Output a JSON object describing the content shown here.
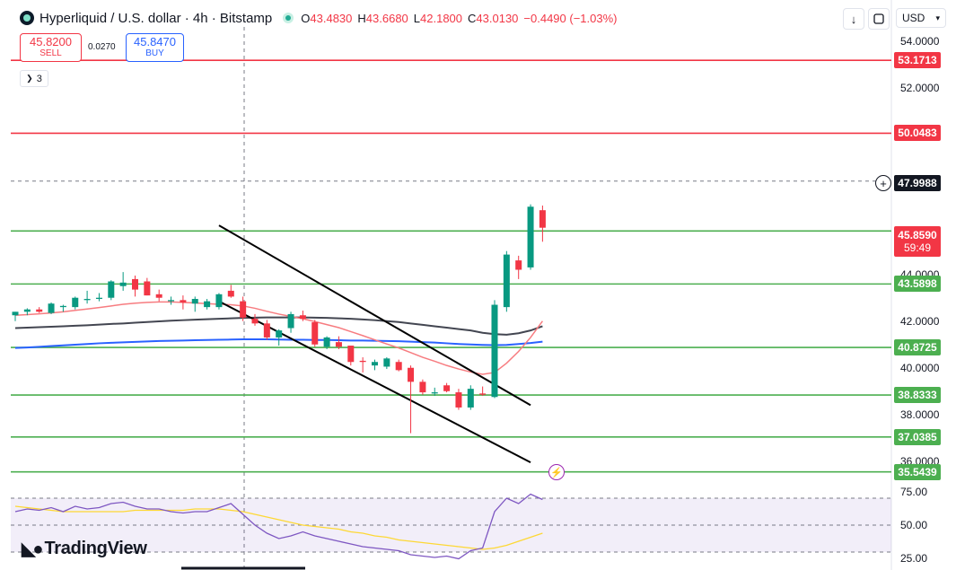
{
  "header": {
    "title": "Hyperliquid / U.S. dollar · 4h · Bitstamp",
    "ohlc": [
      {
        "key": "O",
        "value": "43.4830"
      },
      {
        "key": "H",
        "value": "43.6680"
      },
      {
        "key": "L",
        "value": "42.1800"
      },
      {
        "key": "C",
        "value": "43.0130"
      }
    ],
    "change": "−0.4490 (−1.03%)"
  },
  "toolbar": {
    "download_icon": "arrow-down-icon",
    "screenshot_icon": "frame-icon",
    "currency": "USD"
  },
  "trade": {
    "sell_price": "45.8200",
    "sell_label": "SELL",
    "spread": "0.0270",
    "buy_price": "45.8470",
    "buy_label": "BUY"
  },
  "collapse_label": "3",
  "brand": "TradingView",
  "colors": {
    "up": "#089981",
    "down": "#f23645",
    "support": "#4caf50",
    "resistance": "#f23645",
    "ma_fast": "#f77c80",
    "ma_mid": "#434651",
    "ma_slow": "#2962ff",
    "rsi": "#7e57c2",
    "rsi_ma": "#fdd835"
  },
  "price_labels": {
    "current": "45.8590",
    "countdown": "59:49",
    "crosshair": "47.9988"
  },
  "chart_data": {
    "type": "candlestick",
    "ylim": [
      34.8,
      54.6
    ],
    "yticks": [
      "54.0000",
      "52.0000",
      "44.0000",
      "42.0000",
      "40.0000",
      "38.0000",
      "36.0000"
    ],
    "ytick_values": [
      54,
      52,
      44,
      42,
      40,
      38,
      36
    ],
    "resistance_levels": [
      {
        "value": 53.1713,
        "label": "53.1713"
      },
      {
        "value": 50.0483,
        "label": "50.0483"
      }
    ],
    "support_levels": [
      {
        "value": 45.859,
        "label": ""
      },
      {
        "value": 43.5898,
        "label": "43.5898"
      },
      {
        "value": 40.8725,
        "label": "40.8725"
      },
      {
        "value": 38.8333,
        "label": "38.8333"
      },
      {
        "value": 37.0385,
        "label": "37.0385"
      },
      {
        "value": 35.5439,
        "label": "35.5439"
      }
    ],
    "crosshair_value": 47.9988,
    "candles": [
      [
        42.25,
        42.4,
        42.0,
        42.4
      ],
      [
        42.4,
        42.55,
        42.25,
        42.5
      ],
      [
        42.5,
        42.6,
        42.35,
        42.4
      ],
      [
        42.35,
        42.8,
        42.3,
        42.75
      ],
      [
        42.6,
        42.7,
        42.4,
        42.65
      ],
      [
        42.6,
        43.05,
        42.5,
        43.0
      ],
      [
        42.9,
        43.3,
        42.75,
        42.95
      ],
      [
        42.95,
        43.2,
        42.85,
        43.0
      ],
      [
        43.0,
        43.75,
        42.9,
        43.7
      ],
      [
        43.5,
        44.1,
        43.3,
        43.65
      ],
      [
        43.8,
        43.95,
        43.05,
        43.35
      ],
      [
        43.7,
        43.85,
        43.1,
        43.1
      ],
      [
        43.15,
        43.35,
        42.85,
        43.0
      ],
      [
        42.85,
        43.05,
        42.7,
        42.9
      ],
      [
        42.9,
        43.1,
        42.5,
        42.8
      ],
      [
        42.75,
        43.05,
        42.4,
        42.95
      ],
      [
        42.6,
        42.95,
        42.5,
        42.85
      ],
      [
        42.6,
        43.2,
        42.5,
        43.15
      ],
      [
        43.3,
        43.55,
        43.0,
        43.05
      ],
      [
        42.85,
        43.05,
        42.0,
        42.15
      ],
      [
        42.1,
        42.3,
        41.8,
        41.9
      ],
      [
        41.9,
        42.05,
        41.2,
        41.3
      ],
      [
        41.3,
        41.65,
        40.95,
        41.6
      ],
      [
        41.7,
        42.4,
        41.5,
        42.3
      ],
      [
        42.25,
        42.45,
        42.0,
        42.1
      ],
      [
        41.95,
        42.05,
        40.9,
        41.0
      ],
      [
        40.9,
        41.35,
        40.8,
        41.3
      ],
      [
        41.1,
        41.35,
        40.8,
        40.9
      ],
      [
        40.95,
        40.95,
        40.1,
        40.25
      ],
      [
        40.3,
        40.45,
        39.8,
        40.25
      ],
      [
        40.1,
        40.35,
        39.9,
        40.25
      ],
      [
        40.05,
        40.45,
        39.95,
        40.4
      ],
      [
        40.25,
        40.35,
        39.85,
        39.9
      ],
      [
        40.0,
        40.1,
        37.2,
        39.4
      ],
      [
        39.4,
        39.5,
        38.85,
        38.95
      ],
      [
        38.9,
        39.15,
        38.8,
        38.95
      ],
      [
        39.25,
        39.35,
        38.95,
        39.0
      ],
      [
        38.95,
        39.1,
        38.2,
        38.3
      ],
      [
        38.3,
        39.25,
        38.2,
        39.1
      ],
      [
        38.9,
        39.2,
        38.8,
        38.85
      ],
      [
        38.75,
        42.9,
        38.7,
        42.7
      ],
      [
        42.6,
        45.0,
        42.4,
        44.85
      ],
      [
        44.6,
        44.8,
        43.8,
        44.2
      ],
      [
        44.3,
        47.0,
        44.2,
        46.9
      ],
      [
        46.75,
        46.95,
        45.4,
        46.0
      ]
    ],
    "ma_fast": [
      42.25,
      42.28,
      42.31,
      42.35,
      42.4,
      42.46,
      42.52,
      42.58,
      42.65,
      42.72,
      42.77,
      42.8,
      42.82,
      42.82,
      42.8,
      42.78,
      42.75,
      42.72,
      42.7,
      42.65,
      42.55,
      42.42,
      42.3,
      42.2,
      42.1,
      41.98,
      41.85,
      41.72,
      41.55,
      41.38,
      41.2,
      41.02,
      40.85,
      40.65,
      40.45,
      40.28,
      40.1,
      39.95,
      39.82,
      39.72,
      39.8,
      40.2,
      40.7,
      41.3,
      42.0
    ],
    "ma_mid": [
      41.7,
      41.72,
      41.74,
      41.76,
      41.78,
      41.8,
      41.82,
      41.85,
      41.88,
      41.9,
      41.93,
      41.96,
      41.99,
      42.02,
      42.04,
      42.06,
      42.08,
      42.1,
      42.12,
      42.14,
      42.15,
      42.16,
      42.16,
      42.16,
      42.16,
      42.15,
      42.14,
      42.12,
      42.1,
      42.07,
      42.04,
      42.0,
      41.96,
      41.9,
      41.84,
      41.78,
      41.72,
      41.66,
      41.6,
      41.5,
      41.44,
      41.42,
      41.48,
      41.6,
      41.78
    ],
    "ma_slow": [
      40.85,
      40.87,
      40.9,
      40.93,
      40.96,
      40.99,
      41.02,
      41.05,
      41.07,
      41.09,
      41.11,
      41.13,
      41.15,
      41.16,
      41.17,
      41.18,
      41.19,
      41.2,
      41.21,
      41.22,
      41.22,
      41.22,
      41.21,
      41.2,
      41.2,
      41.19,
      41.19,
      41.18,
      41.17,
      41.17,
      41.16,
      41.15,
      41.14,
      41.12,
      41.1,
      41.08,
      41.05,
      41.02,
      41.0,
      40.98,
      40.97,
      40.98,
      41.02,
      41.06,
      41.12
    ],
    "channel_upper": [
      [
        17,
        46.1
      ],
      [
        43,
        38.4
      ]
    ],
    "channel_lower": [
      [
        17,
        42.85
      ],
      [
        43,
        35.95
      ]
    ],
    "oscillator": {
      "ylim": [
        22,
        78
      ],
      "yticks": [
        "75.00",
        "50.00",
        "25.00"
      ],
      "ytick_values": [
        75,
        50,
        25
      ],
      "band": [
        30,
        70
      ],
      "mid": 50,
      "rsi": [
        60,
        62,
        61,
        63,
        60,
        64,
        62,
        63,
        66,
        67,
        64,
        62,
        62,
        60,
        59,
        60,
        60,
        63,
        66,
        58,
        50,
        44,
        40,
        42,
        45,
        42,
        40,
        38,
        36,
        34,
        33,
        32,
        31,
        28,
        27,
        26,
        27,
        25,
        31,
        33,
        60,
        70,
        66,
        73,
        69
      ],
      "rsi_ma": [
        64,
        63,
        62,
        61,
        60,
        60,
        60,
        60,
        60,
        60,
        61,
        61,
        61,
        61,
        61,
        62,
        62,
        62,
        61,
        60,
        58,
        56,
        54,
        52,
        50,
        49,
        48,
        47,
        45,
        44,
        42,
        41,
        39,
        38,
        37,
        36,
        35,
        34,
        33,
        32,
        33,
        35,
        38,
        41,
        44
      ]
    }
  }
}
